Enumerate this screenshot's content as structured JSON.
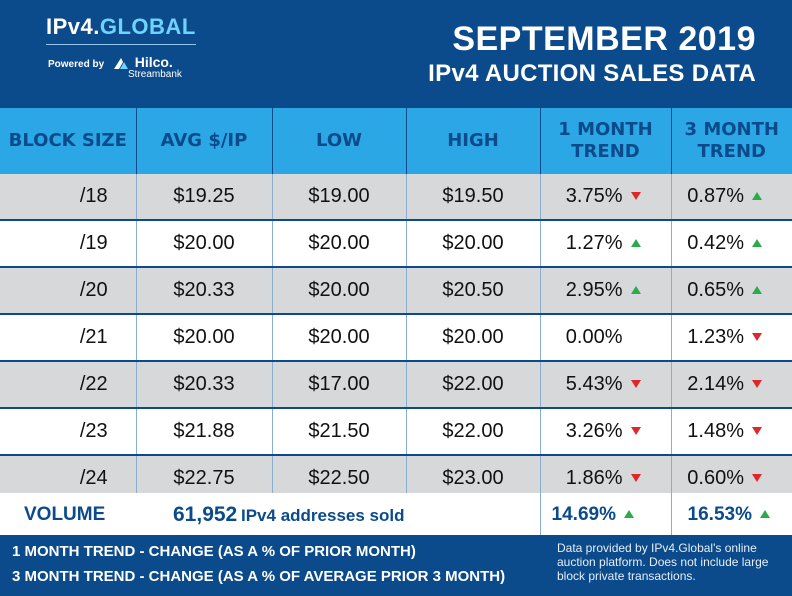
{
  "header": {
    "logo_prefix": "IPv4.",
    "logo_accent": "GLOBAL",
    "powered_by": "Powered by",
    "hilco_name": "Hilco.",
    "hilco_sub": "Streambank",
    "title_line1": "SEPTEMBER 2019",
    "title_line2": "IPv4 AUCTION SALES DATA"
  },
  "table": {
    "columns": [
      "BLOCK SIZE",
      "AVG $/IP",
      "LOW",
      "HIGH",
      "1 MONTH TREND",
      "3 MONTH TREND"
    ],
    "rows": [
      {
        "size": "/18",
        "avg": "$19.25",
        "low": "$19.00",
        "high": "$19.50",
        "t1": "3.75%",
        "t1_dir": "down",
        "t3": "0.87%",
        "t3_dir": "up"
      },
      {
        "size": "/19",
        "avg": "$20.00",
        "low": "$20.00",
        "high": "$20.00",
        "t1": "1.27%",
        "t1_dir": "up",
        "t3": "0.42%",
        "t3_dir": "up"
      },
      {
        "size": "/20",
        "avg": "$20.33",
        "low": "$20.00",
        "high": "$20.50",
        "t1": "2.95%",
        "t1_dir": "up",
        "t3": "0.65%",
        "t3_dir": "up"
      },
      {
        "size": "/21",
        "avg": "$20.00",
        "low": "$20.00",
        "high": "$20.00",
        "t1": "0.00%",
        "t1_dir": "none",
        "t3": "1.23%",
        "t3_dir": "down"
      },
      {
        "size": "/22",
        "avg": "$20.33",
        "low": "$17.00",
        "high": "$22.00",
        "t1": "5.43%",
        "t1_dir": "down",
        "t3": "2.14%",
        "t3_dir": "down"
      },
      {
        "size": "/23",
        "avg": "$21.88",
        "low": "$21.50",
        "high": "$22.00",
        "t1": "3.26%",
        "t1_dir": "down",
        "t3": "1.48%",
        "t3_dir": "down"
      },
      {
        "size": "/24",
        "avg": "$22.75",
        "low": "$22.50",
        "high": "$23.00",
        "t1": "1.86%",
        "t1_dir": "down",
        "t3": "0.60%",
        "t3_dir": "down"
      }
    ]
  },
  "volume": {
    "label": "VOLUME",
    "count": "61,952",
    "description": "IPv4 addresses sold",
    "trend_1m": "14.69%",
    "trend_1m_dir": "up",
    "trend_3m": "16.53%",
    "trend_3m_dir": "up"
  },
  "footer": {
    "note_1m": "1 MONTH TREND - CHANGE (AS A % OF PRIOR MONTH)",
    "note_3m": "3 MONTH TREND - CHANGE (AS A % OF AVERAGE PRIOR 3 MONTH)",
    "credit": "Data provided by IPv4.Global's online auction platform. Does not include large block private transactions."
  },
  "colors": {
    "brand_navy": "#0b4a8b",
    "header_cyan": "#2aa7e4",
    "row_gray": "#d7d8da",
    "trend_up": "#2bab4a",
    "trend_down": "#e0262b"
  }
}
